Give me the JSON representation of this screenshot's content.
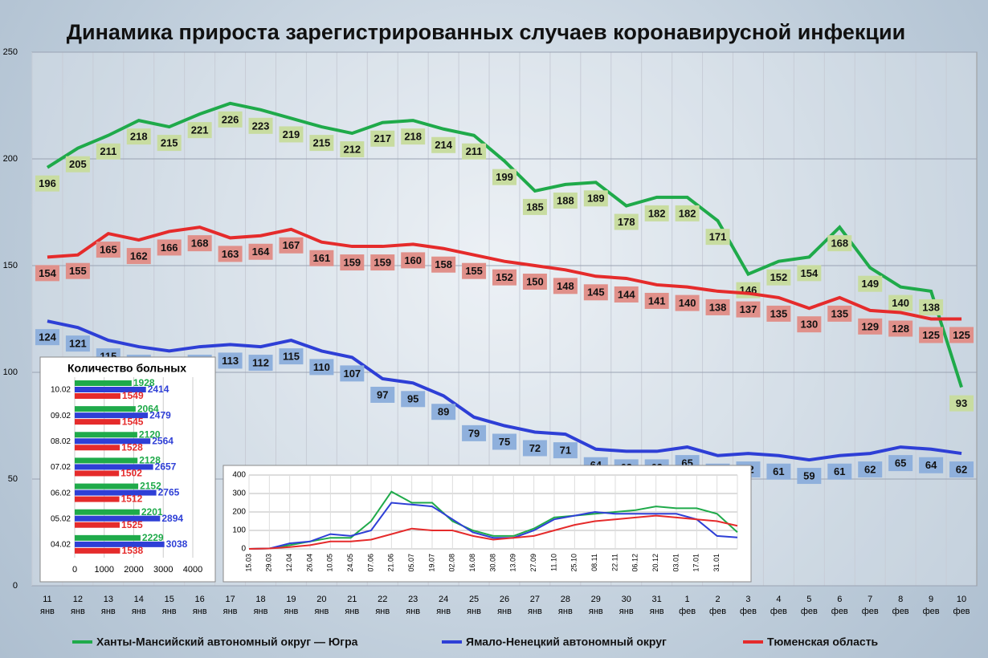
{
  "chart_data": [
    {
      "type": "line",
      "title": "Динамика прироста зарегистрированных случаев коронавирусной инфекции",
      "categories": [
        "11 янв",
        "12 янв",
        "13 янв",
        "14 янв",
        "15 янв",
        "16 янв",
        "17 янв",
        "18 янв",
        "19 янв",
        "20 янв",
        "21 янв",
        "22 янв",
        "23 янв",
        "24 янв",
        "25 янв",
        "26 янв",
        "27 янв",
        "28 янв",
        "29 янв",
        "30 янв",
        "31 янв",
        "1 фев",
        "2 фев",
        "3 фев",
        "4 фев",
        "5 фев",
        "6 фев",
        "7 фев",
        "8 фев",
        "9 фев",
        "10 фев"
      ],
      "series": [
        {
          "name": "Ханты-Мансийский автономный округ — Югра",
          "color": "#1faa4a",
          "label_color": "#c8dca0",
          "values": [
            196,
            205,
            211,
            218,
            215,
            221,
            226,
            223,
            219,
            215,
            212,
            217,
            218,
            214,
            211,
            199,
            185,
            188,
            189,
            178,
            182,
            182,
            171,
            146,
            152,
            154,
            168,
            149,
            140,
            138,
            93
          ]
        },
        {
          "name": "Ямало-Ненецкий автономный округ",
          "color": "#2e3fd6",
          "label_color": "#8fb0dc",
          "values": [
            124,
            121,
            115,
            112,
            110,
            112,
            113,
            112,
            115,
            110,
            107,
            97,
            95,
            89,
            79,
            75,
            72,
            71,
            64,
            63,
            63,
            65,
            61,
            62,
            61,
            59,
            61,
            62,
            65,
            64,
            62
          ]
        },
        {
          "name": "Тюменская область",
          "color": "#e52b2b",
          "label_color": "#e0908a",
          "values": [
            154,
            155,
            165,
            162,
            166,
            168,
            163,
            164,
            167,
            161,
            159,
            159,
            160,
            158,
            155,
            152,
            150,
            148,
            145,
            144,
            141,
            140,
            138,
            137,
            135,
            130,
            135,
            129,
            128,
            125,
            125
          ]
        }
      ],
      "ylim": [
        0,
        250
      ],
      "yticks": [
        0,
        50,
        100,
        150,
        200,
        250
      ],
      "grid": true,
      "legend": "bottom"
    },
    {
      "type": "barh",
      "title": "Количество больных",
      "categories": [
        "10.02",
        "09.02",
        "08.02",
        "07.02",
        "06.02",
        "05.02",
        "04.02"
      ],
      "series": [
        {
          "color": "#1faa4a",
          "values": [
            1928,
            2064,
            2120,
            2128,
            2152,
            2201,
            2229
          ]
        },
        {
          "color": "#2e3fd6",
          "values": [
            2414,
            2479,
            2564,
            2657,
            2765,
            2894,
            3038
          ]
        },
        {
          "color": "#e52b2b",
          "values": [
            1549,
            1545,
            1528,
            1502,
            1512,
            1525,
            1538
          ]
        }
      ],
      "xlim": [
        0,
        4000
      ],
      "xticks": [
        0,
        1000,
        2000,
        3000,
        4000
      ]
    },
    {
      "type": "line",
      "categories": [
        "15.03",
        "29.03",
        "12.04",
        "26.04",
        "10.05",
        "24.05",
        "07.06",
        "21.06",
        "05.07",
        "19.07",
        "02.08",
        "16.08",
        "30.08",
        "13.09",
        "27.09",
        "11.10",
        "25.10",
        "08.11",
        "22.11",
        "06.12",
        "20.12",
        "03.01",
        "17.01",
        "31.01",
        null
      ],
      "series": [
        {
          "color": "#1faa4a",
          "values": [
            0,
            2,
            20,
            40,
            60,
            60,
            150,
            310,
            250,
            250,
            150,
            100,
            70,
            70,
            110,
            170,
            180,
            190,
            200,
            210,
            230,
            220,
            220,
            190,
            90
          ]
        },
        {
          "color": "#2e3fd6",
          "values": [
            0,
            2,
            30,
            40,
            80,
            70,
            100,
            250,
            240,
            230,
            160,
            90,
            60,
            60,
            100,
            160,
            180,
            200,
            190,
            190,
            190,
            190,
            160,
            70,
            62
          ]
        },
        {
          "color": "#e52b2b",
          "values": [
            0,
            2,
            10,
            20,
            40,
            40,
            50,
            80,
            110,
            100,
            100,
            70,
            50,
            60,
            70,
            100,
            130,
            150,
            160,
            170,
            180,
            170,
            160,
            150,
            125
          ]
        }
      ],
      "ylim": [
        0,
        400
      ],
      "yticks": [
        0,
        100,
        200,
        300,
        400
      ],
      "grid": true
    }
  ]
}
